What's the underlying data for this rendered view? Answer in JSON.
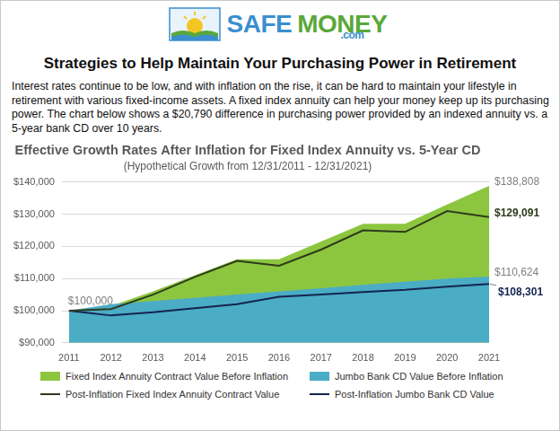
{
  "page": {
    "logo": [
      "SAFE",
      "MONEY",
      ".com"
    ],
    "heading": "Strategies to Help Maintain Your Purchasing Power in Retirement",
    "intro": "Interest rates continue to be low, and with inflation on the rise, it can be hard to maintain your lifestyle in retirement with various fixed-income assets. A fixed index annuity can help your money keep up its purchasing power. The chart below shows a $20,790 difference in purchasing power provided by an indexed annuity vs. a 5-year bank CD over 10 years."
  },
  "chart_data": {
    "type": "line",
    "title": "Effective Growth Rates After Inflation for Fixed Index Annuity vs. 5-Year CD",
    "subtitle": "(Hypothetical Growth from 12/31/2011 - 12/31/2021)",
    "categories": [
      "2011",
      "2012",
      "2013",
      "2014",
      "2015",
      "2016",
      "2017",
      "2018",
      "2019",
      "2020",
      "2021"
    ],
    "series": [
      {
        "name": "Fixed Index Annuity Contract Value Before Inflation",
        "type": "area",
        "color": "#8cc63f",
        "values": [
          100000,
          101500,
          106000,
          111000,
          116000,
          116000,
          121500,
          127000,
          127000,
          133000,
          138808
        ]
      },
      {
        "name": "Jumbo Bank CD Value Before Inflation",
        "type": "area",
        "color": "#4bacc6",
        "values": [
          100000,
          102000,
          103000,
          104000,
          105000,
          106000,
          107000,
          108000,
          109000,
          110000,
          110624
        ]
      },
      {
        "name": "Post-Inflation Fixed Index Annuity Contract Value",
        "type": "line",
        "color": "#2d3b1c",
        "values": [
          100000,
          100500,
          105000,
          110500,
          115500,
          114000,
          119000,
          125000,
          124500,
          131000,
          129091
        ]
      },
      {
        "name": "Post-Inflation Jumbo Bank CD Value",
        "type": "line",
        "color": "#14244f",
        "values": [
          100000,
          98500,
          99500,
          100800,
          102000,
          104300,
          105000,
          105800,
          106500,
          107500,
          108301
        ]
      }
    ],
    "ylim": [
      90000,
      140000
    ],
    "yticks": [
      {
        "value": 90000,
        "label": "$90,000"
      },
      {
        "value": 100000,
        "label": "$100,000"
      },
      {
        "value": 110000,
        "label": "$110,000"
      },
      {
        "value": 120000,
        "label": "$120,000"
      },
      {
        "value": 130000,
        "label": "$130,000"
      },
      {
        "value": 140000,
        "label": "$140,000"
      }
    ],
    "grid": true,
    "legend": "bottom",
    "annotations": [
      {
        "text": "$100,000",
        "x": "2011",
        "y": 100000
      },
      {
        "text": "$138,808",
        "x": "2021",
        "y": 138808,
        "series": "Fixed Index Annuity Contract Value Before Inflation"
      },
      {
        "text": "$129,091",
        "x": "2021",
        "y": 129091,
        "series": "Post-Inflation Fixed Index Annuity Contract Value"
      },
      {
        "text": "$110,624",
        "x": "2021",
        "y": 110624,
        "series": "Jumbo Bank CD Value Before Inflation"
      },
      {
        "text": "$108,301",
        "x": "2021",
        "y": 108301,
        "series": "Post-Inflation Jumbo Bank CD Value"
      }
    ]
  }
}
